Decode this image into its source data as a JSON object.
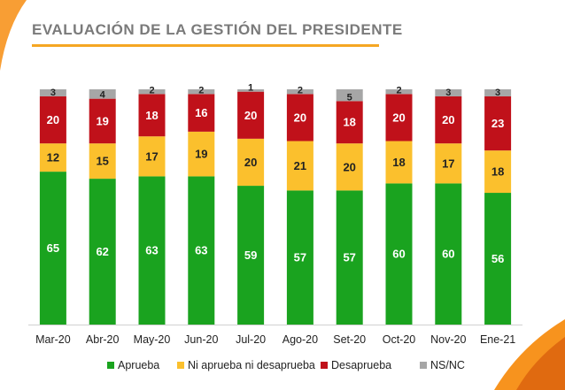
{
  "title": "EVALUACIÓN DE LA GESTIÓN DEL PRESIDENTE",
  "colors": {
    "aprueba": "#1aa31f",
    "ni": "#fbc02d",
    "desaprueba": "#c0111a",
    "nsnc": "#a6a6a6",
    "title_rule": "#f5a623",
    "accent": "#f7931e"
  },
  "chart_data": {
    "type": "bar",
    "stacked": true,
    "categories": [
      "Mar-20",
      "Abr-20",
      "May-20",
      "Jun-20",
      "Jul-20",
      "Ago-20",
      "Set-20",
      "Oct-20",
      "Nov-20",
      "Ene-21"
    ],
    "series": [
      {
        "name": "Aprueba",
        "color_key": "aprueba",
        "values": [
          65,
          62,
          63,
          63,
          59,
          57,
          57,
          60,
          60,
          56
        ]
      },
      {
        "name": "Ni aprueba ni desaprueba",
        "color_key": "ni",
        "values": [
          12,
          15,
          17,
          19,
          20,
          21,
          20,
          18,
          17,
          18
        ]
      },
      {
        "name": "Desaprueba",
        "color_key": "desaprueba",
        "values": [
          20,
          19,
          18,
          16,
          20,
          20,
          18,
          20,
          20,
          23
        ]
      },
      {
        "name": "NS/NC",
        "color_key": "nsnc",
        "values": [
          3,
          4,
          2,
          2,
          1,
          2,
          5,
          2,
          3,
          3
        ]
      }
    ],
    "ylim": [
      0,
      100
    ],
    "legend_position": "bottom",
    "grid": false
  }
}
